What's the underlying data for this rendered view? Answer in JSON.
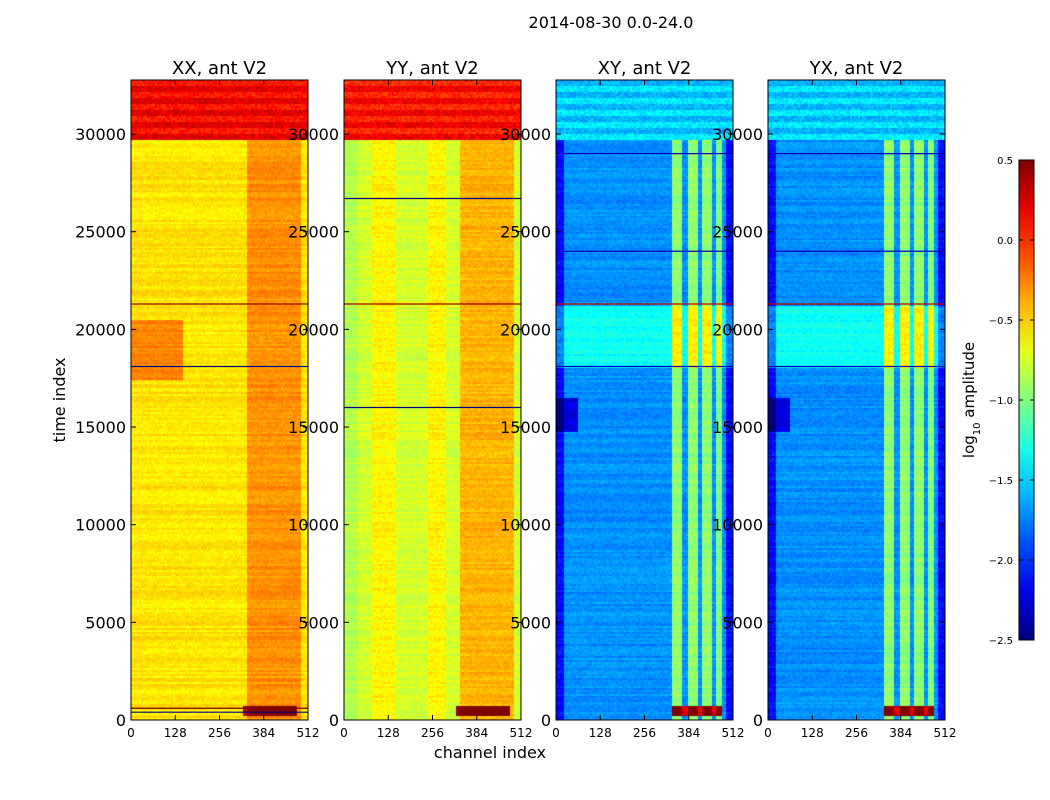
{
  "figure_title": "2014-08-30 0.0-24.0",
  "chart_data": {
    "type": "heatmap",
    "title": "2014-08-30 0.0-24.0",
    "xlabel": "channel index",
    "ylabel": "time index",
    "xlim": [
      0,
      512
    ],
    "ylim": [
      0,
      32768
    ],
    "x_ticks": [
      0,
      128,
      256,
      384,
      512
    ],
    "y_ticks": [
      0,
      5000,
      10000,
      15000,
      20000,
      25000,
      30000
    ],
    "colorscale": "jet",
    "colorbar": {
      "label": "log10 amplitude",
      "label_main": "log",
      "label_sub": "10",
      "label_rest": " amplitude",
      "range": [
        -2.5,
        0.5
      ],
      "ticks": [
        -2.5,
        -2.0,
        -1.5,
        -1.0,
        -0.5,
        0.0,
        0.5
      ],
      "tick_labels": [
        "−2.5",
        "−2.0",
        "−1.5",
        "−1.0",
        "−0.5",
        "0.0",
        "0.5"
      ]
    },
    "panels": [
      {
        "title": "XX, ant V2",
        "base": -0.55,
        "top_band": {
          "y_from": 29700,
          "y_to": 32768,
          "value": 0.1
        },
        "channel_features": [
          {
            "ch_from": 0,
            "ch_to": 512,
            "delta": 0.0
          },
          {
            "ch_from": 330,
            "ch_to": 490,
            "delta": 0.25
          }
        ],
        "time_features": [
          {
            "y_from": 17500,
            "y_to": 20500,
            "ch_from": 0,
            "ch_to": 150,
            "delta": 0.3
          },
          {
            "y_from": 300,
            "y_to": 800,
            "ch_from": 320,
            "ch_to": 480,
            "delta": 0.9
          }
        ],
        "lines": [
          {
            "y": 21300,
            "value": 0.4
          },
          {
            "y": 18100,
            "value": -2.5
          },
          {
            "y": 600,
            "value": 0.5
          },
          {
            "y": 400,
            "value": -2.5
          }
        ]
      },
      {
        "title": "YY, ant V2",
        "base": -0.75,
        "top_band": {
          "y_from": 29700,
          "y_to": 32768,
          "value": 0.05
        },
        "channel_features": [
          {
            "ch_from": 0,
            "ch_to": 40,
            "delta": -0.1
          },
          {
            "ch_from": 80,
            "ch_to": 150,
            "delta": 0.15
          },
          {
            "ch_from": 240,
            "ch_to": 290,
            "delta": 0.15
          },
          {
            "ch_from": 330,
            "ch_to": 490,
            "delta": 0.35
          }
        ],
        "time_features": [
          {
            "y_from": 300,
            "y_to": 800,
            "ch_from": 320,
            "ch_to": 480,
            "delta": 1.2
          }
        ],
        "lines": [
          {
            "y": 26700,
            "value": -2.5
          },
          {
            "y": 21300,
            "value": 0.4
          },
          {
            "y": 16000,
            "value": -2.5
          }
        ]
      },
      {
        "title": "XY, ant V2",
        "base": -1.7,
        "top_band": {
          "y_from": 29700,
          "y_to": 32768,
          "value": -1.55
        },
        "channel_features": [
          {
            "ch_from": 0,
            "ch_to": 20,
            "delta": -0.4
          },
          {
            "ch_from": 490,
            "ch_to": 512,
            "delta": -0.4
          },
          {
            "ch_from": 330,
            "ch_to": 360,
            "delta": 0.75
          },
          {
            "ch_from": 380,
            "ch_to": 410,
            "delta": 0.75
          },
          {
            "ch_from": 420,
            "ch_to": 450,
            "delta": 0.75
          },
          {
            "ch_from": 460,
            "ch_to": 480,
            "delta": 0.7
          }
        ],
        "time_features": [
          {
            "y_from": 18100,
            "y_to": 21200,
            "ch_from": 0,
            "ch_to": 512,
            "delta": 0.35
          },
          {
            "y_from": 14800,
            "y_to": 16500,
            "ch_from": 0,
            "ch_to": 60,
            "delta": -0.5
          },
          {
            "y_from": 300,
            "y_to": 800,
            "ch_from": 330,
            "ch_to": 480,
            "delta": 1.9
          }
        ],
        "lines": [
          {
            "y": 21300,
            "value": 0.3
          },
          {
            "y": 29000,
            "value": -2.3
          },
          {
            "y": 24000,
            "value": -2.3
          },
          {
            "y": 18100,
            "value": -2.3
          }
        ]
      },
      {
        "title": "YX, ant V2",
        "base": -1.7,
        "top_band": {
          "y_from": 29700,
          "y_to": 32768,
          "value": -1.55
        },
        "channel_features": [
          {
            "ch_from": 0,
            "ch_to": 20,
            "delta": -0.4
          },
          {
            "ch_from": 490,
            "ch_to": 512,
            "delta": -0.4
          },
          {
            "ch_from": 330,
            "ch_to": 360,
            "delta": 0.75
          },
          {
            "ch_from": 380,
            "ch_to": 410,
            "delta": 0.75
          },
          {
            "ch_from": 420,
            "ch_to": 450,
            "delta": 0.75
          },
          {
            "ch_from": 460,
            "ch_to": 480,
            "delta": 0.7
          }
        ],
        "time_features": [
          {
            "y_from": 18100,
            "y_to": 21200,
            "ch_from": 0,
            "ch_to": 512,
            "delta": 0.35
          },
          {
            "y_from": 14800,
            "y_to": 16500,
            "ch_from": 0,
            "ch_to": 60,
            "delta": -0.5
          },
          {
            "y_from": 300,
            "y_to": 800,
            "ch_from": 330,
            "ch_to": 480,
            "delta": 1.9
          }
        ],
        "lines": [
          {
            "y": 21300,
            "value": 0.3
          },
          {
            "y": 29000,
            "value": -2.3
          },
          {
            "y": 24000,
            "value": -2.3
          },
          {
            "y": 18100,
            "value": -2.3
          }
        ]
      }
    ]
  }
}
